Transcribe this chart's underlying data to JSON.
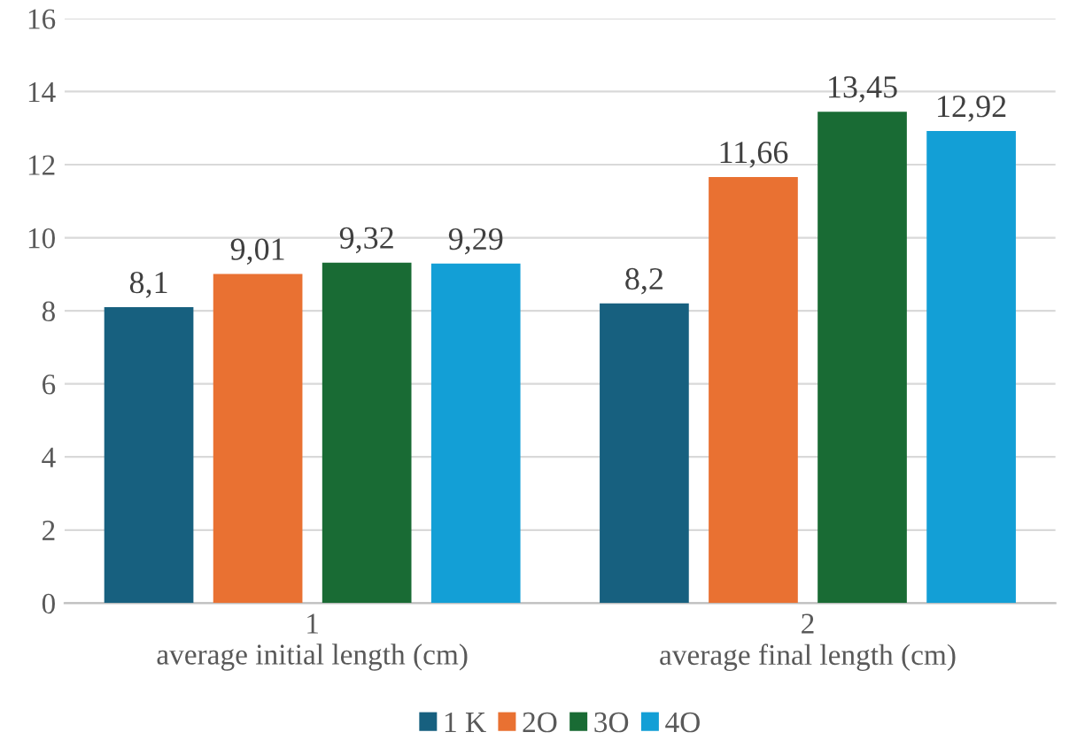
{
  "chart_data": {
    "type": "bar",
    "categories": [
      "1\naverage initial length (cm)",
      "2\naverage final length (cm)"
    ],
    "series": [
      {
        "name": "1 K",
        "color": "#17607f",
        "values": [
          8.1,
          8.2
        ],
        "value_labels": [
          "8,1",
          "8,2"
        ]
      },
      {
        "name": "2O",
        "color": "#e97132",
        "values": [
          9.01,
          11.66
        ],
        "value_labels": [
          "9,01",
          "11,66"
        ]
      },
      {
        "name": "3O",
        "color": "#196b34",
        "values": [
          9.32,
          13.45
        ],
        "value_labels": [
          "9,32",
          "13,45"
        ]
      },
      {
        "name": "4O",
        "color": "#139fd6",
        "values": [
          9.29,
          12.92
        ],
        "value_labels": [
          "9,29",
          "12,92"
        ]
      }
    ],
    "ylim": [
      0,
      16
    ],
    "yticks": [
      0,
      2,
      4,
      6,
      8,
      10,
      12,
      14,
      16
    ],
    "grid": "y",
    "legend": "bottom"
  }
}
